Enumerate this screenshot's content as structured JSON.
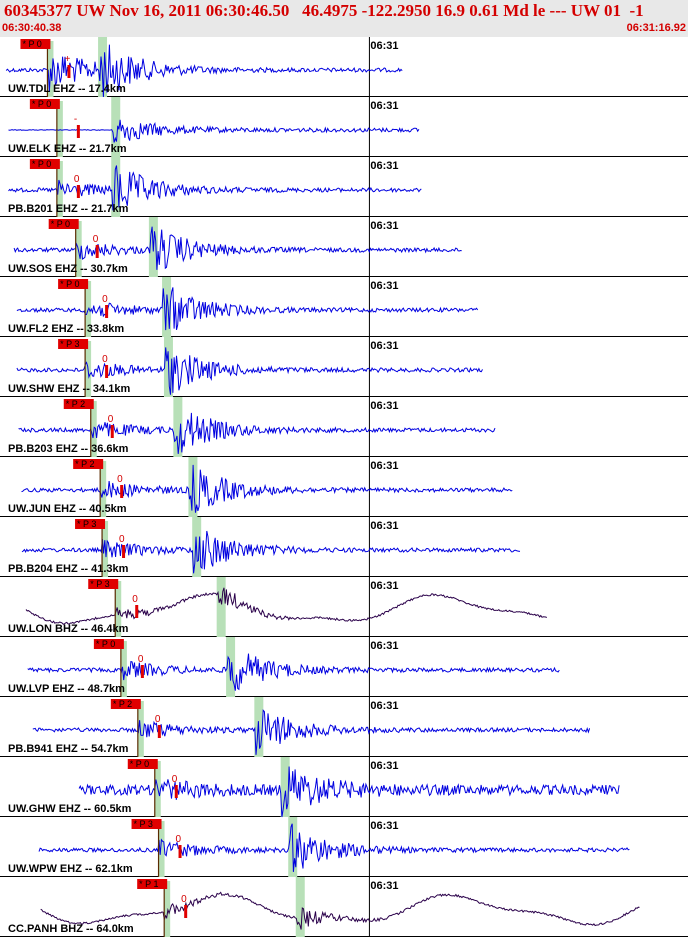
{
  "header": {
    "title": "60345377 UW Nov 16, 2011 06:30:46.50   46.4975 -122.2950 16.9 0.61 Md le --- UW 01  -1",
    "start_time": "06:30:40.38",
    "end_time": "06:31:16.92"
  },
  "colors": {
    "header_bg": "#e8e8e8",
    "header_text": "#d40000",
    "trace_blue": "#0000e0",
    "trace_dark": "#2a004a",
    "pick_box": "#e00000",
    "s_window": "#b8e0b8",
    "separator": "#000000"
  },
  "chart_data": {
    "type": "line",
    "time_window": [
      "06:30:40.38",
      "06:31:16.92"
    ],
    "minute_mark": "06:31",
    "traces": [
      {
        "label": "UW.TDL EHZ -- 17.4km",
        "p_label": "* P 0",
        "p_time": 42.9,
        "s_time": 45.8,
        "marker": "+",
        "amp": "high",
        "color": "blue"
      },
      {
        "label": "UW.ELK EHZ -- 21.7km",
        "p_label": "* P 0",
        "p_time": 43.4,
        "s_time": 46.5,
        "marker": "-",
        "amp": "low",
        "color": "blue"
      },
      {
        "label": "PB.B201 EHZ -- 21.7km",
        "p_label": "* P 0",
        "p_time": 43.4,
        "s_time": 46.5,
        "marker": "0",
        "amp": "med",
        "color": "blue"
      },
      {
        "label": "UW.SOS EHZ -- 30.7km",
        "p_label": "* P 0",
        "p_time": 44.4,
        "s_time": 48.5,
        "marker": "0",
        "amp": "med",
        "color": "blue"
      },
      {
        "label": "UW.FL2 EHZ -- 33.8km",
        "p_label": "* P 0",
        "p_time": 44.9,
        "s_time": 49.2,
        "marker": "0",
        "amp": "med",
        "color": "blue"
      },
      {
        "label": "UW.SHW EHZ -- 34.1km",
        "p_label": "* P 3",
        "p_time": 44.9,
        "s_time": 49.3,
        "marker": "0",
        "amp": "med",
        "color": "blue"
      },
      {
        "label": "PB.B203 EHZ -- 36.6km",
        "p_label": "* P 2",
        "p_time": 45.2,
        "s_time": 49.8,
        "marker": "0",
        "amp": "med",
        "color": "blue"
      },
      {
        "label": "UW.JUN EHZ -- 40.5km",
        "p_label": "* P 2",
        "p_time": 45.7,
        "s_time": 50.6,
        "marker": "0",
        "amp": "med",
        "color": "blue"
      },
      {
        "label": "PB.B204 EHZ -- 41.3km",
        "p_label": "* P 3",
        "p_time": 45.8,
        "s_time": 50.8,
        "marker": "0",
        "amp": "med",
        "color": "blue"
      },
      {
        "label": "UW.LON BHZ -- 46.4km",
        "p_label": "* P 3",
        "p_time": 46.5,
        "s_time": 52.1,
        "marker": "0",
        "amp": "long",
        "color": "dark"
      },
      {
        "label": "UW.LVP EHZ -- 48.7km",
        "p_label": "* P 0",
        "p_time": 46.8,
        "s_time": 52.6,
        "marker": "0",
        "amp": "med",
        "color": "blue"
      },
      {
        "label": "PB.B941 EHZ -- 54.7km",
        "p_label": "* P 2",
        "p_time": 47.7,
        "s_time": 54.1,
        "marker": "0",
        "amp": "med",
        "color": "blue"
      },
      {
        "label": "UW.GHW EHZ -- 60.5km",
        "p_label": "* P 0",
        "p_time": 48.6,
        "s_time": 55.5,
        "marker": "0",
        "amp": "noisy",
        "color": "blue"
      },
      {
        "label": "UW.WPW EHZ -- 62.1km",
        "p_label": "* P 3",
        "p_time": 48.8,
        "s_time": 55.9,
        "marker": "0",
        "amp": "med",
        "color": "blue"
      },
      {
        "label": "CC.PANH BHZ -- 64.0km",
        "p_label": "* P 1",
        "p_time": 49.1,
        "s_time": 56.3,
        "marker": "0",
        "amp": "long",
        "color": "dark"
      }
    ]
  }
}
